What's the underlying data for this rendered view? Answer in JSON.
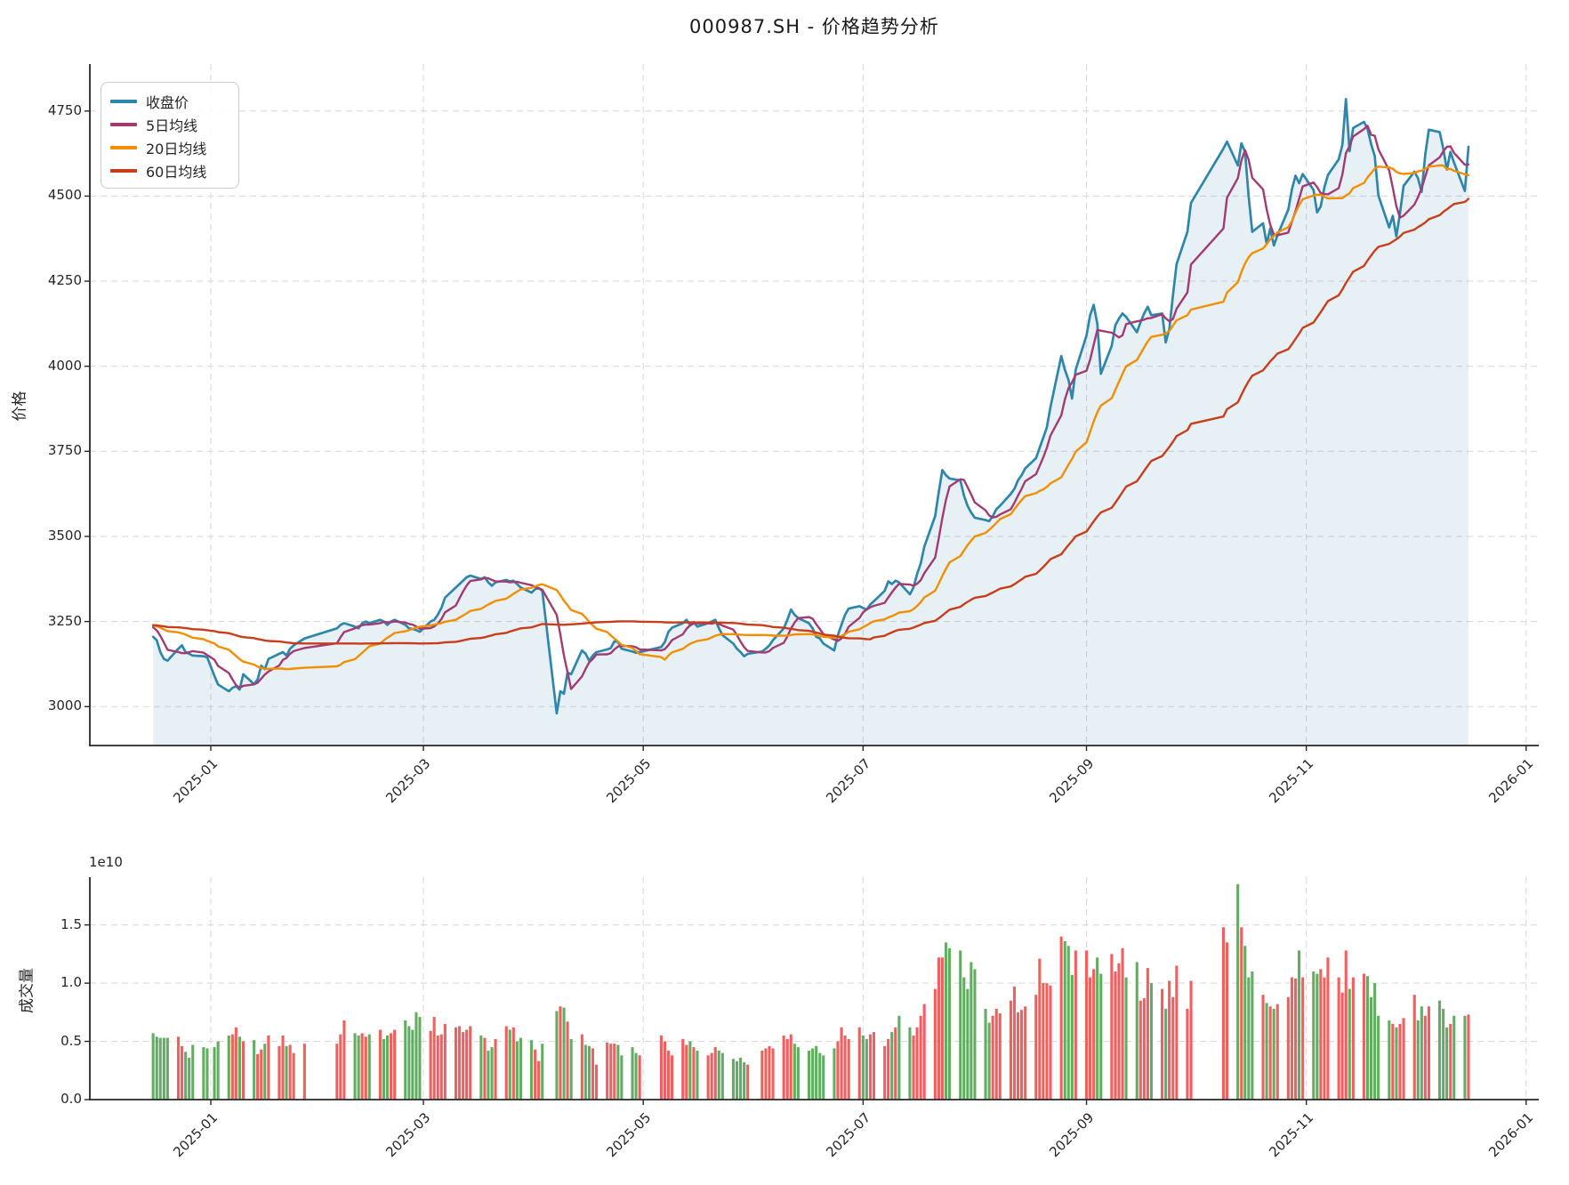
{
  "title": "000987.SH - 价格趋势分析",
  "price_chart": {
    "ylabel": "价格",
    "yticks": [
      3000,
      3250,
      3500,
      3750,
      4000,
      4250,
      4500,
      4750
    ]
  },
  "volume_chart": {
    "ylabel": "成交量",
    "offset_label": "1e10",
    "yticks": [
      "0.0",
      "0.5",
      "1.0",
      "1.5"
    ],
    "ytick_values": [
      0,
      0.5,
      1.0,
      1.5
    ]
  },
  "chart_data": {
    "type": "line+bar",
    "xticks": [
      "2025-01",
      "2025-03",
      "2025-05",
      "2025-07",
      "2025-09",
      "2025-11",
      "2026-01"
    ],
    "columns": [
      "date",
      "close",
      "volume_1e10"
    ],
    "panels": [
      {
        "type": "line",
        "ylabel": "价格",
        "ylim": [
          2885,
          4885
        ],
        "grid": "dashed",
        "legend_position": "upper-left",
        "ma_seed_prehistory": 3240,
        "fill_under_close": "rgba(46,134,171,0.12)",
        "series": [
          {
            "name": "收盘价",
            "color": "#2E86AB",
            "source": "close"
          },
          {
            "name": "5日均线",
            "color": "#A23B72",
            "source": "ma5_of_close"
          },
          {
            "name": "20日均线",
            "color": "#F18F01",
            "source": "ma20_of_close"
          },
          {
            "name": "60日均线",
            "color": "#C73E1D",
            "source": "ma60_of_close"
          }
        ]
      },
      {
        "type": "bar",
        "ylabel": "成交量",
        "scale": "1e10",
        "ylim": [
          0,
          1.9
        ],
        "up_color": "#f15f5f",
        "down_color": "#63ad63",
        "color_rule": "red_if_close_up_else_green"
      }
    ],
    "rows": [
      [
        "2024-12-16",
        3205,
        0.57
      ],
      [
        "2024-12-17",
        3195,
        0.54
      ],
      [
        "2024-12-18",
        3160,
        0.53
      ],
      [
        "2024-12-19",
        3140,
        0.53
      ],
      [
        "2024-12-20",
        3135,
        0.53
      ],
      [
        "2024-12-23",
        3170,
        0.54
      ],
      [
        "2024-12-24",
        3180,
        0.46
      ],
      [
        "2024-12-25",
        3160,
        0.41
      ],
      [
        "2024-12-26",
        3155,
        0.36
      ],
      [
        "2024-12-27",
        3150,
        0.47
      ],
      [
        "2024-12-30",
        3148,
        0.45
      ],
      [
        "2024-12-31",
        3145,
        0.44
      ],
      [
        "2025-01-02",
        3090,
        0.45
      ],
      [
        "2025-01-03",
        3065,
        0.5
      ],
      [
        "2025-01-06",
        3045,
        0.55
      ],
      [
        "2025-01-07",
        3055,
        0.56
      ],
      [
        "2025-01-08",
        3060,
        0.62
      ],
      [
        "2025-01-09",
        3050,
        0.54
      ],
      [
        "2025-01-10",
        3095,
        0.5
      ],
      [
        "2025-01-13",
        3066,
        0.51
      ],
      [
        "2025-01-14",
        3080,
        0.39
      ],
      [
        "2025-01-15",
        3120,
        0.43
      ],
      [
        "2025-01-16",
        3110,
        0.48
      ],
      [
        "2025-01-17",
        3140,
        0.55
      ],
      [
        "2025-01-20",
        3155,
        0.46
      ],
      [
        "2025-01-21",
        3160,
        0.55
      ],
      [
        "2025-01-22",
        3150,
        0.46
      ],
      [
        "2025-01-23",
        3170,
        0.47
      ],
      [
        "2025-01-24",
        3180,
        0.4
      ],
      [
        "2025-01-27",
        3200,
        0.48
      ],
      [
        "2025-02-05",
        3230,
        0.48
      ],
      [
        "2025-02-06",
        3240,
        0.56
      ],
      [
        "2025-02-07",
        3245,
        0.68
      ],
      [
        "2025-02-10",
        3235,
        0.57
      ],
      [
        "2025-02-11",
        3230,
        0.55
      ],
      [
        "2025-02-12",
        3245,
        0.57
      ],
      [
        "2025-02-13",
        3250,
        0.54
      ],
      [
        "2025-02-14",
        3245,
        0.56
      ],
      [
        "2025-02-17",
        3255,
        0.6
      ],
      [
        "2025-02-18",
        3250,
        0.52
      ],
      [
        "2025-02-19",
        3240,
        0.55
      ],
      [
        "2025-02-20",
        3250,
        0.57
      ],
      [
        "2025-02-21",
        3255,
        0.6
      ],
      [
        "2025-02-24",
        3240,
        0.68
      ],
      [
        "2025-02-25",
        3230,
        0.63
      ],
      [
        "2025-02-26",
        3228,
        0.6
      ],
      [
        "2025-02-27",
        3225,
        0.75
      ],
      [
        "2025-02-28",
        3220,
        0.71
      ],
      [
        "2025-03-03",
        3250,
        0.59
      ],
      [
        "2025-03-04",
        3255,
        0.71
      ],
      [
        "2025-03-05",
        3270,
        0.55
      ],
      [
        "2025-03-06",
        3290,
        0.56
      ],
      [
        "2025-03-07",
        3320,
        0.65
      ],
      [
        "2025-03-10",
        3350,
        0.62
      ],
      [
        "2025-03-11",
        3360,
        0.63
      ],
      [
        "2025-03-12",
        3370,
        0.58
      ],
      [
        "2025-03-13",
        3380,
        0.6
      ],
      [
        "2025-03-14",
        3385,
        0.63
      ],
      [
        "2025-03-17",
        3375,
        0.55
      ],
      [
        "2025-03-18",
        3380,
        0.53
      ],
      [
        "2025-03-19",
        3365,
        0.42
      ],
      [
        "2025-03-20",
        3355,
        0.45
      ],
      [
        "2025-03-21",
        3365,
        0.52
      ],
      [
        "2025-03-24",
        3372,
        0.63
      ],
      [
        "2025-03-25",
        3368,
        0.6
      ],
      [
        "2025-03-26",
        3370,
        0.62
      ],
      [
        "2025-03-27",
        3360,
        0.5
      ],
      [
        "2025-03-28",
        3350,
        0.53
      ],
      [
        "2025-03-31",
        3335,
        0.51
      ],
      [
        "2025-04-01",
        3345,
        0.43
      ],
      [
        "2025-04-02",
        3348,
        0.33
      ],
      [
        "2025-04-03",
        3340,
        0.48
      ],
      [
        "2025-04-07",
        2980,
        0.76
      ],
      [
        "2025-04-08",
        3045,
        0.8
      ],
      [
        "2025-04-09",
        3038,
        0.79
      ],
      [
        "2025-04-10",
        3100,
        0.67
      ],
      [
        "2025-04-11",
        3095,
        0.52
      ],
      [
        "2025-04-14",
        3165,
        0.56
      ],
      [
        "2025-04-15",
        3155,
        0.47
      ],
      [
        "2025-04-16",
        3135,
        0.46
      ],
      [
        "2025-04-17",
        3150,
        0.44
      ],
      [
        "2025-04-18",
        3160,
        0.3
      ],
      [
        "2025-04-21",
        3168,
        0.49
      ],
      [
        "2025-04-22",
        3172,
        0.48
      ],
      [
        "2025-04-23",
        3192,
        0.48
      ],
      [
        "2025-04-24",
        3190,
        0.47
      ],
      [
        "2025-04-25",
        3170,
        0.38
      ],
      [
        "2025-04-28",
        3162,
        0.45
      ],
      [
        "2025-04-29",
        3158,
        0.4
      ],
      [
        "2025-04-30",
        3160,
        0.38
      ],
      [
        "2025-05-06",
        3175,
        0.55
      ],
      [
        "2025-05-07",
        3190,
        0.5
      ],
      [
        "2025-05-08",
        3220,
        0.42
      ],
      [
        "2025-05-09",
        3232,
        0.38
      ],
      [
        "2025-05-12",
        3245,
        0.52
      ],
      [
        "2025-05-13",
        3255,
        0.47
      ],
      [
        "2025-05-14",
        3240,
        0.5
      ],
      [
        "2025-05-15",
        3248,
        0.45
      ],
      [
        "2025-05-16",
        3235,
        0.42
      ],
      [
        "2025-05-19",
        3245,
        0.38
      ],
      [
        "2025-05-20",
        3250,
        0.4
      ],
      [
        "2025-05-21",
        3255,
        0.45
      ],
      [
        "2025-05-22",
        3230,
        0.42
      ],
      [
        "2025-05-23",
        3210,
        0.4
      ],
      [
        "2025-05-26",
        3185,
        0.35
      ],
      [
        "2025-05-27",
        3170,
        0.33
      ],
      [
        "2025-05-28",
        3160,
        0.36
      ],
      [
        "2025-05-29",
        3148,
        0.32
      ],
      [
        "2025-05-30",
        3155,
        0.3
      ],
      [
        "2025-06-03",
        3162,
        0.42
      ],
      [
        "2025-06-04",
        3170,
        0.44
      ],
      [
        "2025-06-05",
        3180,
        0.46
      ],
      [
        "2025-06-06",
        3195,
        0.44
      ],
      [
        "2025-06-09",
        3230,
        0.55
      ],
      [
        "2025-06-10",
        3255,
        0.52
      ],
      [
        "2025-06-11",
        3285,
        0.56
      ],
      [
        "2025-06-12",
        3270,
        0.48
      ],
      [
        "2025-06-13",
        3260,
        0.45
      ],
      [
        "2025-06-16",
        3245,
        0.42
      ],
      [
        "2025-06-17",
        3230,
        0.44
      ],
      [
        "2025-06-18",
        3205,
        0.46
      ],
      [
        "2025-06-19",
        3200,
        0.4
      ],
      [
        "2025-06-20",
        3185,
        0.38
      ],
      [
        "2025-06-23",
        3165,
        0.44
      ],
      [
        "2025-06-24",
        3210,
        0.5
      ],
      [
        "2025-06-25",
        3240,
        0.62
      ],
      [
        "2025-06-26",
        3270,
        0.55
      ],
      [
        "2025-06-27",
        3288,
        0.52
      ],
      [
        "2025-06-30",
        3295,
        0.62
      ],
      [
        "2025-07-01",
        3290,
        0.55
      ],
      [
        "2025-07-02",
        3285,
        0.52
      ],
      [
        "2025-07-03",
        3300,
        0.56
      ],
      [
        "2025-07-04",
        3310,
        0.58
      ],
      [
        "2025-07-07",
        3340,
        0.46
      ],
      [
        "2025-07-08",
        3368,
        0.52
      ],
      [
        "2025-07-09",
        3360,
        0.58
      ],
      [
        "2025-07-10",
        3370,
        0.62
      ],
      [
        "2025-07-11",
        3365,
        0.72
      ],
      [
        "2025-07-14",
        3330,
        0.62
      ],
      [
        "2025-07-15",
        3350,
        0.55
      ],
      [
        "2025-07-16",
        3390,
        0.62
      ],
      [
        "2025-07-17",
        3420,
        0.72
      ],
      [
        "2025-07-18",
        3470,
        0.82
      ],
      [
        "2025-07-21",
        3560,
        0.95
      ],
      [
        "2025-07-22",
        3630,
        1.22
      ],
      [
        "2025-07-23",
        3695,
        1.22
      ],
      [
        "2025-07-24",
        3680,
        1.35
      ],
      [
        "2025-07-25",
        3670,
        1.3
      ],
      [
        "2025-07-28",
        3665,
        1.28
      ],
      [
        "2025-07-29",
        3620,
        1.05
      ],
      [
        "2025-07-30",
        3590,
        0.95
      ],
      [
        "2025-07-31",
        3570,
        1.18
      ],
      [
        "2025-08-01",
        3555,
        1.12
      ],
      [
        "2025-08-04",
        3548,
        0.78
      ],
      [
        "2025-08-05",
        3545,
        0.66
      ],
      [
        "2025-08-06",
        3560,
        0.72
      ],
      [
        "2025-08-07",
        3580,
        0.78
      ],
      [
        "2025-08-08",
        3590,
        0.74
      ],
      [
        "2025-08-11",
        3625,
        0.85
      ],
      [
        "2025-08-12",
        3640,
        0.97
      ],
      [
        "2025-08-13",
        3665,
        0.75
      ],
      [
        "2025-08-14",
        3680,
        0.77
      ],
      [
        "2025-08-15",
        3700,
        0.8
      ],
      [
        "2025-08-18",
        3730,
        0.9
      ],
      [
        "2025-08-19",
        3760,
        1.21
      ],
      [
        "2025-08-20",
        3790,
        1.0
      ],
      [
        "2025-08-21",
        3820,
        1.0
      ],
      [
        "2025-08-22",
        3880,
        0.98
      ],
      [
        "2025-08-25",
        4030,
        1.4
      ],
      [
        "2025-08-26",
        3990,
        1.36
      ],
      [
        "2025-08-27",
        3960,
        1.32
      ],
      [
        "2025-08-28",
        3905,
        1.07
      ],
      [
        "2025-08-29",
        3990,
        1.28
      ],
      [
        "2025-09-01",
        4090,
        1.28
      ],
      [
        "2025-09-02",
        4150,
        1.05
      ],
      [
        "2025-09-03",
        4180,
        1.12
      ],
      [
        "2025-09-04",
        4125,
        1.22
      ],
      [
        "2025-09-05",
        3978,
        1.08
      ],
      [
        "2025-09-08",
        4060,
        1.25
      ],
      [
        "2025-09-09",
        4120,
        1.1
      ],
      [
        "2025-09-10",
        4140,
        1.17
      ],
      [
        "2025-09-11",
        4155,
        1.3
      ],
      [
        "2025-09-12",
        4145,
        1.05
      ],
      [
        "2025-09-15",
        4100,
        1.18
      ],
      [
        "2025-09-16",
        4130,
        0.85
      ],
      [
        "2025-09-17",
        4155,
        0.87
      ],
      [
        "2025-09-18",
        4175,
        1.13
      ],
      [
        "2025-09-19",
        4150,
        1.0
      ],
      [
        "2025-09-22",
        4155,
        0.95
      ],
      [
        "2025-09-23",
        4070,
        0.78
      ],
      [
        "2025-09-24",
        4110,
        1.02
      ],
      [
        "2025-09-25",
        4210,
        0.88
      ],
      [
        "2025-09-26",
        4300,
        1.15
      ],
      [
        "2025-09-29",
        4395,
        0.78
      ],
      [
        "2025-09-30",
        4480,
        1.02
      ],
      [
        "2025-10-09",
        4640,
        1.48
      ],
      [
        "2025-10-10",
        4660,
        1.35
      ],
      [
        "2025-10-13",
        4590,
        1.85
      ],
      [
        "2025-10-14",
        4655,
        1.48
      ],
      [
        "2025-10-15",
        4630,
        1.32
      ],
      [
        "2025-10-16",
        4500,
        1.05
      ],
      [
        "2025-10-17",
        4395,
        1.1
      ],
      [
        "2025-10-20",
        4420,
        0.9
      ],
      [
        "2025-10-21",
        4360,
        0.83
      ],
      [
        "2025-10-22",
        4405,
        0.8
      ],
      [
        "2025-10-23",
        4355,
        0.78
      ],
      [
        "2025-10-24",
        4385,
        0.82
      ],
      [
        "2025-10-27",
        4460,
        0.88
      ],
      [
        "2025-10-28",
        4520,
        1.05
      ],
      [
        "2025-10-29",
        4560,
        1.04
      ],
      [
        "2025-10-30",
        4538,
        1.28
      ],
      [
        "2025-10-31",
        4565,
        1.05
      ],
      [
        "2025-11-03",
        4518,
        1.1
      ],
      [
        "2025-11-04",
        4452,
        1.08
      ],
      [
        "2025-11-05",
        4470,
        1.12
      ],
      [
        "2025-11-06",
        4525,
        1.05
      ],
      [
        "2025-11-07",
        4562,
        1.22
      ],
      [
        "2025-11-10",
        4608,
        1.05
      ],
      [
        "2025-11-11",
        4650,
        0.92
      ],
      [
        "2025-11-12",
        4785,
        1.28
      ],
      [
        "2025-11-13",
        4632,
        0.95
      ],
      [
        "2025-11-14",
        4700,
        1.05
      ],
      [
        "2025-11-17",
        4718,
        1.08
      ],
      [
        "2025-11-18",
        4698,
        1.06
      ],
      [
        "2025-11-19",
        4652,
        0.88
      ],
      [
        "2025-11-20",
        4618,
        1.0
      ],
      [
        "2025-11-21",
        4502,
        0.72
      ],
      [
        "2025-11-24",
        4408,
        0.68
      ],
      [
        "2025-11-25",
        4442,
        0.65
      ],
      [
        "2025-11-26",
        4382,
        0.62
      ],
      [
        "2025-11-27",
        4450,
        0.65
      ],
      [
        "2025-11-28",
        4530,
        0.7
      ],
      [
        "2025-12-01",
        4572,
        0.9
      ],
      [
        "2025-12-02",
        4552,
        0.68
      ],
      [
        "2025-12-03",
        4512,
        0.8
      ],
      [
        "2025-12-04",
        4622,
        0.72
      ],
      [
        "2025-12-05",
        4695,
        0.8
      ],
      [
        "2025-12-08",
        4688,
        0.85
      ],
      [
        "2025-12-09",
        4640,
        0.78
      ],
      [
        "2025-12-10",
        4578,
        0.62
      ],
      [
        "2025-12-11",
        4630,
        0.65
      ],
      [
        "2025-12-12",
        4598,
        0.72
      ],
      [
        "2025-12-15",
        4515,
        0.72
      ],
      [
        "2025-12-16",
        4645,
        0.73
      ]
    ]
  }
}
